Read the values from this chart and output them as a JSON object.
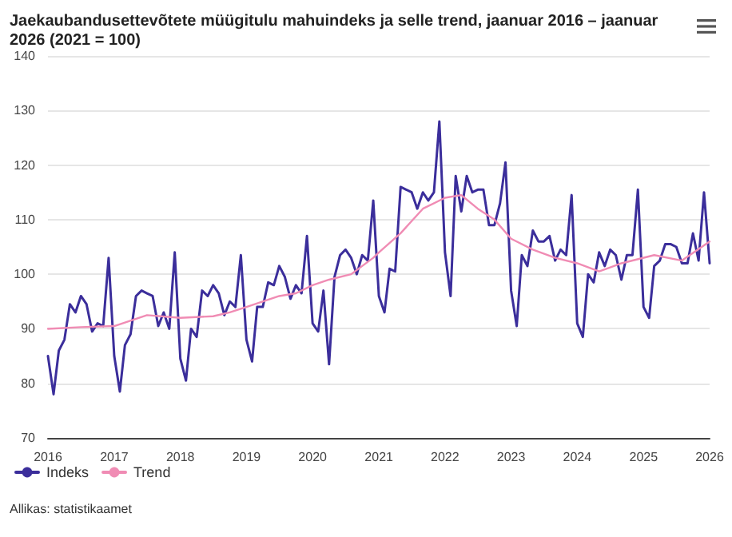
{
  "chart_data": {
    "type": "line",
    "title": "Jaekaubandusettevõtete müügitulu mahuindeks ja selle trend, jaanuar 2016 – jaanuar 2026 (2021 = 100)",
    "annotations": [
      "Allikas: statistikaamet"
    ],
    "x": [
      "2016-01",
      "2016-02",
      "2016-03",
      "2016-04",
      "2016-05",
      "2016-06",
      "2016-07",
      "2016-08",
      "2016-09",
      "2016-10",
      "2016-11",
      "2016-12",
      "2017-01",
      "2017-02",
      "2017-03",
      "2017-04",
      "2017-05",
      "2017-06",
      "2017-07",
      "2017-08",
      "2017-09",
      "2017-10",
      "2017-11",
      "2017-12",
      "2018-01",
      "2018-02",
      "2018-03",
      "2018-04",
      "2018-05",
      "2018-06",
      "2018-07",
      "2018-08",
      "2018-09",
      "2018-10",
      "2018-11",
      "2018-12",
      "2019-01",
      "2019-02",
      "2019-03",
      "2019-04",
      "2019-05",
      "2019-06",
      "2019-07",
      "2019-08",
      "2019-09",
      "2019-10",
      "2019-11",
      "2019-12",
      "2020-01",
      "2020-02",
      "2020-03",
      "2020-04",
      "2020-05",
      "2020-06",
      "2020-07",
      "2020-08",
      "2020-09",
      "2020-10",
      "2020-11",
      "2020-12",
      "2021-01",
      "2021-02",
      "2021-03",
      "2021-04",
      "2021-05",
      "2021-06",
      "2021-07",
      "2021-08",
      "2021-09",
      "2021-10",
      "2021-11",
      "2021-12",
      "2022-01",
      "2022-02",
      "2022-03",
      "2022-04",
      "2022-05",
      "2022-06",
      "2022-07",
      "2022-08",
      "2022-09",
      "2022-10",
      "2022-11",
      "2022-12",
      "2023-01",
      "2023-02",
      "2023-03",
      "2023-04",
      "2023-05",
      "2023-06",
      "2023-07",
      "2023-08",
      "2023-09",
      "2023-10",
      "2023-11",
      "2023-12",
      "2024-01",
      "2024-02",
      "2024-03",
      "2024-04",
      "2024-05",
      "2024-06",
      "2024-07",
      "2024-08",
      "2024-09",
      "2024-10",
      "2024-11",
      "2024-12",
      "2025-01",
      "2025-02",
      "2025-03",
      "2025-04",
      "2025-05",
      "2025-06",
      "2025-07",
      "2025-08",
      "2025-09",
      "2025-10",
      "2025-11",
      "2025-12",
      "2026-01"
    ],
    "series": [
      {
        "name": "Indeks",
        "color": "#3b2e9b",
        "values": [
          85,
          78,
          86,
          88,
          94.5,
          93,
          96,
          94.5,
          89.5,
          91,
          90.5,
          103,
          85,
          78.5,
          87,
          89,
          96,
          97,
          96.5,
          96,
          90.5,
          93,
          90,
          104,
          84.5,
          80.5,
          90,
          88.5,
          97,
          96,
          98,
          96.5,
          92.5,
          95,
          94,
          103.5,
          88,
          84,
          94,
          94,
          98.5,
          98,
          101.5,
          99.5,
          95.5,
          98,
          96.5,
          107,
          91,
          89.5,
          97,
          83.5,
          99.5,
          103.5,
          104.5,
          103,
          100,
          103.5,
          102.5,
          113.5,
          96,
          93,
          101,
          100.5,
          116,
          115.5,
          115,
          112,
          115,
          113.5,
          115,
          128,
          104,
          96,
          118,
          111.5,
          118,
          115,
          115.5,
          115.5,
          109,
          109,
          113,
          120.5,
          97,
          90.5,
          103.5,
          101.5,
          108,
          106,
          106,
          107,
          102.5,
          104.5,
          103.5,
          114.5,
          91,
          88.5,
          100,
          98.5,
          104,
          101.5,
          104.5,
          103.5,
          99,
          103.5,
          103.5,
          115.5,
          94,
          92,
          101.5,
          102.5,
          105.5,
          105.5,
          105,
          102,
          102,
          107.5,
          102.5,
          115,
          102
        ]
      },
      {
        "name": "Trend",
        "color": "#f08cb4",
        "x": [
          "2016-01",
          "2016-07",
          "2017-01",
          "2017-07",
          "2018-01",
          "2018-07",
          "2018-10",
          "2019-01",
          "2019-07",
          "2019-10",
          "2020-01",
          "2020-04",
          "2020-08",
          "2020-12",
          "2021-01",
          "2021-05",
          "2021-09",
          "2022-01",
          "2022-04",
          "2022-07",
          "2022-10",
          "2023-01",
          "2023-05",
          "2023-09",
          "2024-01",
          "2024-05",
          "2024-09",
          "2025-03",
          "2025-08",
          "2026-01"
        ],
        "values": [
          90,
          90.3,
          90.5,
          92.5,
          92,
          92.3,
          93,
          94,
          96,
          96.5,
          98,
          99,
          100,
          103,
          104,
          107.5,
          112,
          114,
          114.5,
          112,
          110,
          106.5,
          104.5,
          103,
          102,
          100.5,
          102,
          103.5,
          102.5,
          106
        ]
      }
    ],
    "xlim": [
      "2016-01",
      "2026-01"
    ],
    "xticks": [
      "2016",
      "2017",
      "2018",
      "2019",
      "2020",
      "2021",
      "2022",
      "2023",
      "2024",
      "2025",
      "2026"
    ],
    "ylim": [
      70,
      140
    ],
    "yticks": [
      70,
      80,
      90,
      100,
      110,
      120,
      130,
      140
    ],
    "grid": "y",
    "legend": "bottom left",
    "marker": "none",
    "line_style": "solid"
  }
}
